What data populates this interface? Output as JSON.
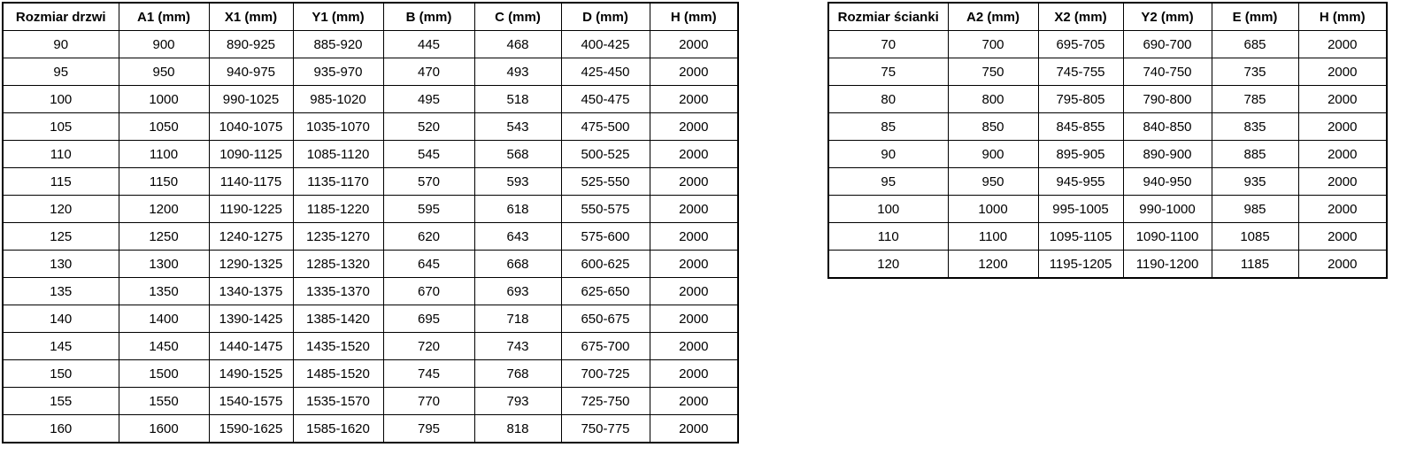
{
  "tables": [
    {
      "title": "door-sizes",
      "headers": [
        "Rozmiar drzwi",
        "A1 (mm)",
        "X1 (mm)",
        "Y1 (mm)",
        "B (mm)",
        "C (mm)",
        "D (mm)",
        "H (mm)"
      ],
      "rows": [
        [
          "90",
          "900",
          "890-925",
          "885-920",
          "445",
          "468",
          "400-425",
          "2000"
        ],
        [
          "95",
          "950",
          "940-975",
          "935-970",
          "470",
          "493",
          "425-450",
          "2000"
        ],
        [
          "100",
          "1000",
          "990-1025",
          "985-1020",
          "495",
          "518",
          "450-475",
          "2000"
        ],
        [
          "105",
          "1050",
          "1040-1075",
          "1035-1070",
          "520",
          "543",
          "475-500",
          "2000"
        ],
        [
          "110",
          "1100",
          "1090-1125",
          "1085-1120",
          "545",
          "568",
          "500-525",
          "2000"
        ],
        [
          "115",
          "1150",
          "1140-1175",
          "1135-1170",
          "570",
          "593",
          "525-550",
          "2000"
        ],
        [
          "120",
          "1200",
          "1190-1225",
          "1185-1220",
          "595",
          "618",
          "550-575",
          "2000"
        ],
        [
          "125",
          "1250",
          "1240-1275",
          "1235-1270",
          "620",
          "643",
          "575-600",
          "2000"
        ],
        [
          "130",
          "1300",
          "1290-1325",
          "1285-1320",
          "645",
          "668",
          "600-625",
          "2000"
        ],
        [
          "135",
          "1350",
          "1340-1375",
          "1335-1370",
          "670",
          "693",
          "625-650",
          "2000"
        ],
        [
          "140",
          "1400",
          "1390-1425",
          "1385-1420",
          "695",
          "718",
          "650-675",
          "2000"
        ],
        [
          "145",
          "1450",
          "1440-1475",
          "1435-1520",
          "720",
          "743",
          "675-700",
          "2000"
        ],
        [
          "150",
          "1500",
          "1490-1525",
          "1485-1520",
          "745",
          "768",
          "700-725",
          "2000"
        ],
        [
          "155",
          "1550",
          "1540-1575",
          "1535-1570",
          "770",
          "793",
          "725-750",
          "2000"
        ],
        [
          "160",
          "1600",
          "1590-1625",
          "1585-1620",
          "795",
          "818",
          "750-775",
          "2000"
        ]
      ]
    },
    {
      "title": "wall-sizes",
      "headers": [
        "Rozmiar ścianki",
        "A2 (mm)",
        "X2 (mm)",
        "Y2 (mm)",
        "E (mm)",
        "H (mm)"
      ],
      "rows": [
        [
          "70",
          "700",
          "695-705",
          "690-700",
          "685",
          "2000"
        ],
        [
          "75",
          "750",
          "745-755",
          "740-750",
          "735",
          "2000"
        ],
        [
          "80",
          "800",
          "795-805",
          "790-800",
          "785",
          "2000"
        ],
        [
          "85",
          "850",
          "845-855",
          "840-850",
          "835",
          "2000"
        ],
        [
          "90",
          "900",
          "895-905",
          "890-900",
          "885",
          "2000"
        ],
        [
          "95",
          "950",
          "945-955",
          "940-950",
          "935",
          "2000"
        ],
        [
          "100",
          "1000",
          "995-1005",
          "990-1000",
          "985",
          "2000"
        ],
        [
          "110",
          "1100",
          "1095-1105",
          "1090-1100",
          "1085",
          "2000"
        ],
        [
          "120",
          "1200",
          "1195-1205",
          "1190-1200",
          "1185",
          "2000"
        ]
      ]
    }
  ],
  "colors": {
    "border": "#000000",
    "text": "#000000",
    "background": "#ffffff"
  }
}
